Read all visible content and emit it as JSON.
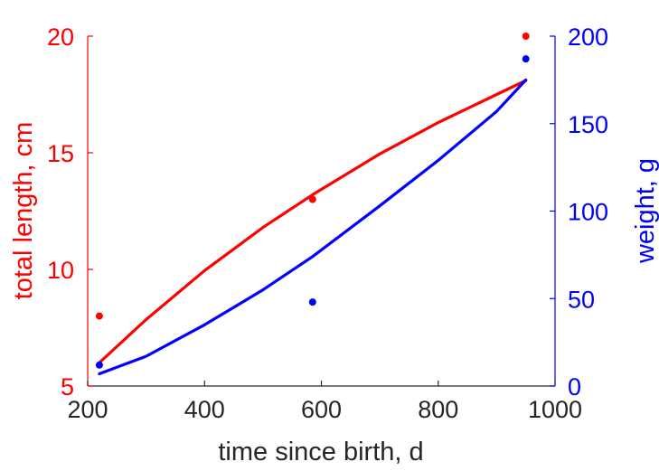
{
  "chart_data": {
    "type": "line",
    "xlabel": "time since birth, d",
    "ylabel_left": "total length, cm",
    "ylabel_right": "weight, g",
    "xlim": [
      200,
      1000
    ],
    "ylim_left": [
      5,
      20
    ],
    "ylim_right": [
      0,
      200
    ],
    "xticks": [
      200,
      400,
      600,
      800,
      1000
    ],
    "yticks_left": [
      5,
      10,
      15,
      20
    ],
    "yticks_right": [
      0,
      50,
      100,
      150,
      200
    ],
    "grid": false,
    "colors": {
      "left": "#ff0000",
      "right": "#0000ff",
      "x": "#262626"
    },
    "series": [
      {
        "axis": "left",
        "color": "#ff0000",
        "points": {
          "x": [
            220,
            585,
            950
          ],
          "y": [
            8,
            13,
            20
          ]
        },
        "fit": {
          "x": [
            220,
            300,
            400,
            500,
            585,
            700,
            800,
            900,
            950
          ],
          "y": [
            6.0,
            7.85,
            9.95,
            11.8,
            13.2,
            14.95,
            16.3,
            17.5,
            18.1
          ]
        }
      },
      {
        "axis": "right",
        "color": "#0000ff",
        "points": {
          "x": [
            220,
            585,
            950
          ],
          "y": [
            12,
            48,
            187
          ]
        },
        "fit": {
          "x": [
            220,
            300,
            400,
            500,
            585,
            700,
            800,
            900,
            950
          ],
          "y": [
            7,
            17,
            35,
            55,
            74,
            103,
            129,
            157,
            175
          ]
        }
      }
    ]
  }
}
